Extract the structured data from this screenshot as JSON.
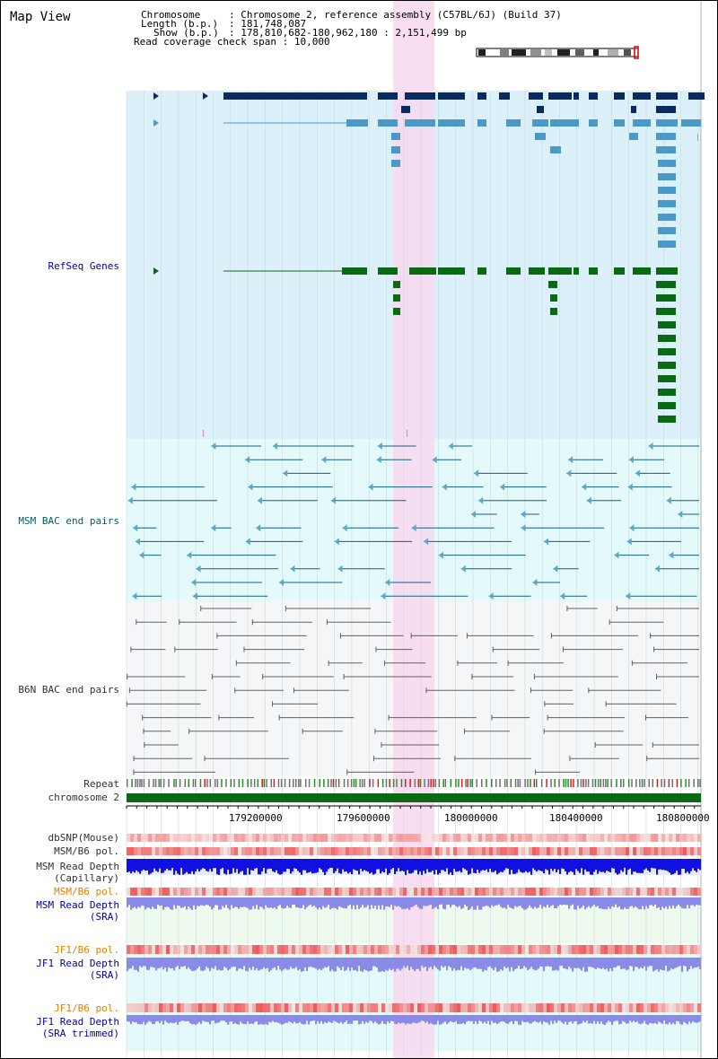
{
  "view": {
    "title": "Map View"
  },
  "header": {
    "chromosome_label": "Chromosome",
    "chromosome_value": "Chromosome 2, reference assembly (C57BL/6J) (Build 37)",
    "length_label": "Length (b.p.)",
    "length_value": "181,748,087",
    "show_label": "Show (b.p.)",
    "show_value": "178,810,682-180,962,180 : 2,151,499 bp",
    "span_label": "Read coverage check span",
    "span_value": "10,000"
  },
  "tracks": {
    "refseq": "RefSeq Genes",
    "msm_bac": "MSM BAC end pairs",
    "b6n_bac": "B6N BAC end pairs",
    "repeat": "Repeat",
    "chromosome": "chromosome 2",
    "dbsnp": "dbSNP(Mouse)",
    "msm_b6_pol_1": "MSM/B6 pol.",
    "msm_depth_cap_1": "MSM Read Depth",
    "msm_depth_cap_2": "(Capillary)",
    "msm_b6_pol_2": "MSM/B6 pol.",
    "msm_depth_sra_1": "MSM Read Depth",
    "msm_depth_sra_2": "(SRA)",
    "jf1_b6_pol_1": "JF1/B6 pol.",
    "jf1_depth_sra_1": "JF1 Read Depth",
    "jf1_depth_sra_2": "(SRA)",
    "jf1_b6_pol_2": "JF1/B6 pol.",
    "jf1_depth_trim_1": "JF1 Read Depth",
    "jf1_depth_trim_2": "(SRA trimmed)"
  },
  "axis": {
    "ticks": [
      "179200000",
      "179600000",
      "180000000",
      "180400000",
      "180800000"
    ]
  },
  "colors": {
    "refseq_bg": "#dcf0fa",
    "msm_bg": "#e4fafa",
    "b6n_bg": "#f4f6f8",
    "highlight": "#f8d8f0",
    "gene_dark": "#0a2a60",
    "gene_mid": "#4a9ac8",
    "gene_green": "#0a6a14",
    "msm_line": "#106080",
    "b6n_line": "#606060",
    "chrom_green": "#0a6a14",
    "depth_blue": "#1010e0",
    "depth_lilac": "#8a8ae8"
  }
}
